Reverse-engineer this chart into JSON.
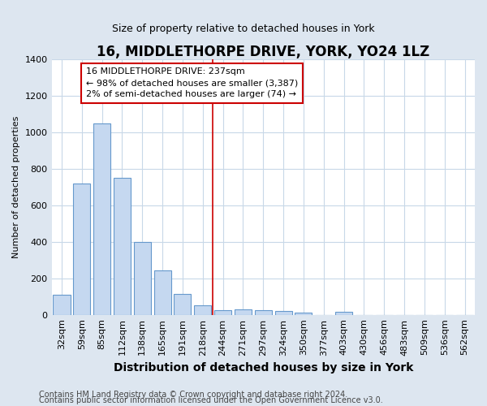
{
  "title": "16, MIDDLETHORPE DRIVE, YORK, YO24 1LZ",
  "subtitle": "Size of property relative to detached houses in York",
  "xlabel": "Distribution of detached houses by size in York",
  "ylabel": "Number of detached properties",
  "categories": [
    "32sqm",
    "59sqm",
    "85sqm",
    "112sqm",
    "138sqm",
    "165sqm",
    "191sqm",
    "218sqm",
    "244sqm",
    "271sqm",
    "297sqm",
    "324sqm",
    "350sqm",
    "377sqm",
    "403sqm",
    "430sqm",
    "456sqm",
    "483sqm",
    "509sqm",
    "536sqm",
    "562sqm"
  ],
  "values": [
    110,
    720,
    1050,
    750,
    400,
    245,
    115,
    50,
    25,
    30,
    25,
    20,
    10,
    0,
    15,
    0,
    0,
    0,
    0,
    0,
    0
  ],
  "bar_color": "#c5d8f0",
  "bar_edge_color": "#6699cc",
  "vline_index": 8,
  "vline_color": "#cc0000",
  "annotation_text": "16 MIDDLETHORPE DRIVE: 237sqm\n← 98% of detached houses are smaller (3,387)\n2% of semi-detached houses are larger (74) →",
  "annotation_box_facecolor": "#ffffff",
  "annotation_box_edgecolor": "#cc0000",
  "ylim": [
    0,
    1400
  ],
  "yticks": [
    0,
    200,
    400,
    600,
    800,
    1000,
    1200,
    1400
  ],
  "footer1": "Contains HM Land Registry data © Crown copyright and database right 2024.",
  "footer2": "Contains public sector information licensed under the Open Government Licence v3.0.",
  "fig_bg_color": "#dde6f0",
  "plot_bg_color": "#ffffff",
  "grid_color": "#c8d8e8",
  "title_fontsize": 12,
  "subtitle_fontsize": 9,
  "xlabel_fontsize": 10,
  "ylabel_fontsize": 8,
  "tick_fontsize": 8,
  "annot_fontsize": 8,
  "footer_fontsize": 7
}
